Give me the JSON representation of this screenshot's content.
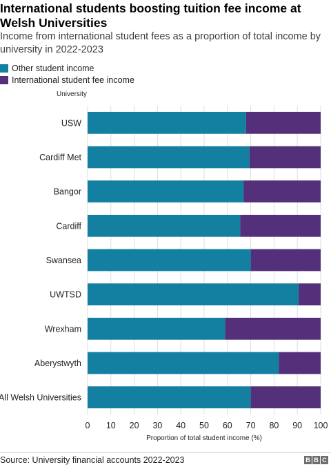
{
  "header": {
    "title": "International students boosting tuition fee income at Welsh Universities",
    "subtitle": "Income from international student fees as a proportion of total income by university in 2022-2023"
  },
  "footer": {
    "source": "Source: University financial accounts 2022-2023",
    "logo": [
      "B",
      "B",
      "C"
    ]
  },
  "chart_data": {
    "type": "bar",
    "orientation": "horizontal",
    "stacked": true,
    "title": "International students boosting tuition fee income at Welsh Universities",
    "subtitle": "Income from international student fees as a proportion of total income by university in 2022-2023",
    "categories": [
      "USW",
      "Cardiff Met",
      "Bangor",
      "Cardiff",
      "Swansea",
      "UWTSD",
      "Wrexham",
      "Aberystwyth",
      "All Welsh Universities"
    ],
    "series": [
      {
        "name": "Other student income",
        "color": "#1380a1",
        "values": [
          68,
          69.5,
          67,
          65.5,
          70,
          90.5,
          59,
          82,
          70
        ]
      },
      {
        "name": "International student fee income",
        "color": "#588300",
        "values": [
          32,
          30.5,
          33,
          34.5,
          30,
          9.5,
          41,
          18,
          30
        ]
      }
    ],
    "series_colors": [
      "#1380a1",
      "#55307a"
    ],
    "xlabel": "Proportion of total student income (%)",
    "ylabel": "University",
    "xlim": [
      0,
      100
    ],
    "xticks": [
      0,
      10,
      20,
      30,
      40,
      50,
      60,
      70,
      80,
      90,
      100
    ],
    "grid": true,
    "legend": "top-left"
  }
}
